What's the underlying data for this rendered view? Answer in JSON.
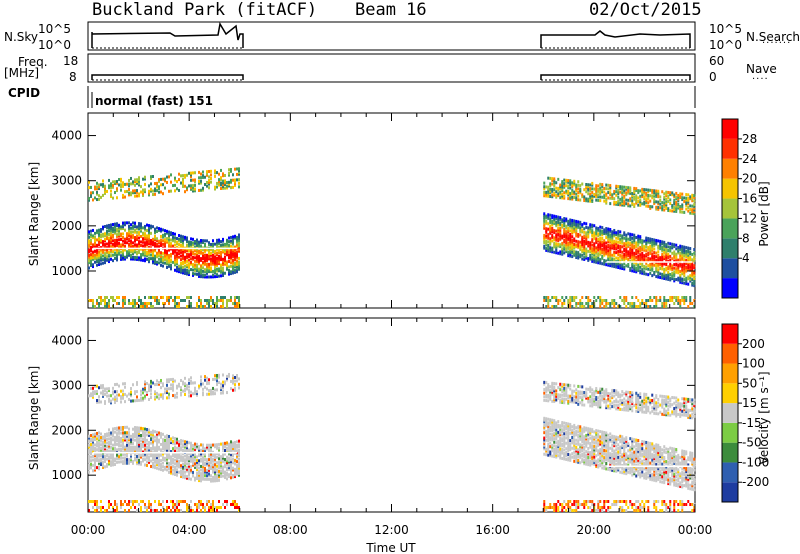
{
  "header": {
    "title": "Buckland Park (fitACF)",
    "beam": "Beam 16",
    "date": "02/Oct/2015"
  },
  "top_panels": {
    "nsky_label": "N.Sky",
    "nsky_ticks": [
      "10^5",
      "10^0"
    ],
    "nsearch_label": "N.Search",
    "freq_label_1": "Freq.",
    "freq_label_2": "[MHz]",
    "freq_ticks": [
      "18",
      "8"
    ],
    "nave_ticks": [
      "60",
      "0"
    ],
    "nave_label": "Nave",
    "cpid_label": "CPID",
    "cpid_text": "normal (fast) 151"
  },
  "chart_data": [
    {
      "type": "heatmap",
      "name": "power",
      "ylabel": "Slant Range [km]",
      "xlabel": "Time UT",
      "x_ticks": [
        "00:00",
        "04:00",
        "08:00",
        "12:00",
        "16:00",
        "20:00",
        "00:00"
      ],
      "y_ticks": [
        "1000",
        "2000",
        "3000",
        "4000"
      ],
      "xlim_hours": [
        0,
        24
      ],
      "ylim_km": [
        180,
        4500
      ],
      "colorbar": {
        "label": "Power [dB]",
        "ticks": [
          "28",
          "24",
          "20",
          "16",
          "12",
          "8",
          "4"
        ],
        "colors": [
          "#0000ff",
          "#1e4fa0",
          "#2f7f6c",
          "#4aa35a",
          "#a5c43a",
          "#f5c400",
          "#ff8000",
          "#ff3000",
          "#ff0000"
        ]
      },
      "data_windows_hours": [
        [
          0,
          6
        ],
        [
          18,
          24
        ]
      ]
    },
    {
      "type": "heatmap",
      "name": "velocity",
      "ylabel": "Slant Range [km]",
      "xlabel": "Time UT",
      "x_ticks": [
        "00:00",
        "04:00",
        "08:00",
        "12:00",
        "16:00",
        "20:00",
        "00:00"
      ],
      "y_ticks": [
        "1000",
        "2000",
        "3000",
        "4000"
      ],
      "xlim_hours": [
        0,
        24
      ],
      "ylim_km": [
        180,
        4500
      ],
      "colorbar": {
        "label": "Velocity [m s⁻¹]",
        "ticks": [
          "200",
          "100",
          "50",
          "15",
          "-15",
          "-50",
          "-100",
          "-200"
        ],
        "colors": [
          "#1e3ca0",
          "#2f5fb0",
          "#3c8c3c",
          "#7ccc44",
          "#c8c8c8",
          "#ffd000",
          "#ffa000",
          "#ff6000",
          "#ff0000"
        ]
      },
      "data_windows_hours": [
        [
          0,
          6
        ],
        [
          18,
          24
        ]
      ]
    }
  ],
  "axes": {
    "time_label": "Time UT"
  },
  "colors": {
    "axis": "#000000",
    "background": "#ffffff"
  }
}
